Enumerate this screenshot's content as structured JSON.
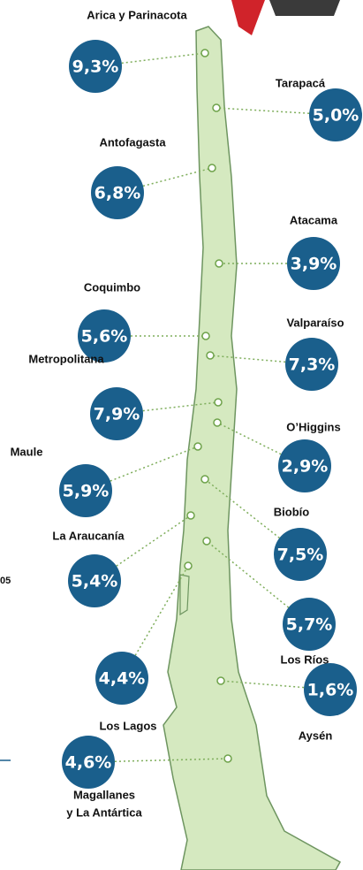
{
  "regions": [
    {
      "name": [
        "Arica y Parinacota"
      ],
      "value": "9,3%"
    },
    {
      "name": [
        "Tarapacá"
      ],
      "value": "5,0%"
    },
    {
      "name": [
        "Antofagasta"
      ],
      "value": "6,8%"
    },
    {
      "name": [
        "Atacama"
      ],
      "value": "3,9%"
    },
    {
      "name": [
        "Coquimbo"
      ],
      "value": "5,6%"
    },
    {
      "name": [
        "Valparaíso"
      ],
      "value": "7,3%"
    },
    {
      "name": [
        "Metropolitana"
      ],
      "value": "7,9%"
    },
    {
      "name": [
        "O’Higgins"
      ],
      "value": "2,9%"
    },
    {
      "name": [
        "Maule"
      ],
      "value": "5,9%"
    },
    {
      "name": [
        "Biobío"
      ],
      "value": "7,5%"
    },
    {
      "name": [
        "La Araucanía"
      ],
      "value": "5,4%"
    },
    {
      "name": [
        "Los Ríos"
      ],
      "value": "5,7%"
    },
    {
      "name": [
        "Los Lagos"
      ],
      "value": "4,4%"
    },
    {
      "name": [
        "Aysén"
      ],
      "value": "1,6%"
    },
    {
      "name": [
        "Magallanes",
        "y La Antártica"
      ],
      "value": "4,6%"
    }
  ],
  "edge_fragment": "05"
}
